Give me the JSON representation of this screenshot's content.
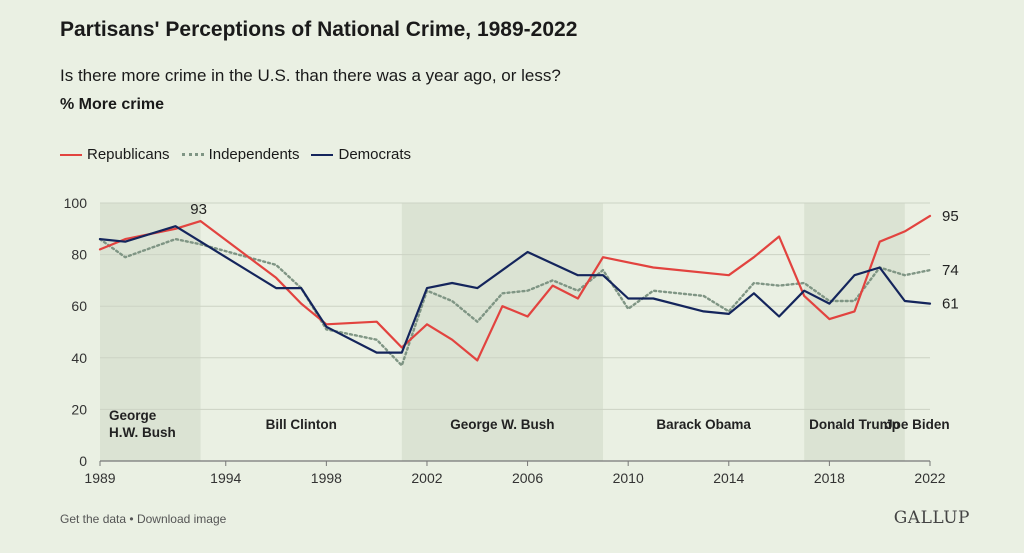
{
  "title": "Partisans' Perceptions of National Crime, 1989-2022",
  "subtitle": "Is there more crime in the U.S. than there was a year ago, or less?",
  "measure_label": "% More crime",
  "footer": {
    "get_data": "Get the data",
    "separator": "•",
    "download": "Download image"
  },
  "brand": "GALLUP",
  "colors": {
    "republicans": "#e2433f",
    "independents": "#7f9584",
    "democrats": "#14255c",
    "shade": "#dbe3d3",
    "grid": "#ccd3c4",
    "axis": "#777777",
    "text": "#1a1a1a"
  },
  "chart_data": {
    "type": "line",
    "title": "Partisans' Perceptions of National Crime, 1989-2022",
    "subtitle": "Is there more crime in the U.S. than there was a year ago, or less?",
    "ylabel": "% More crime",
    "xlabel": "",
    "xlim": [
      1989,
      2022
    ],
    "ylim": [
      0,
      100
    ],
    "x_ticks": [
      1989,
      1994,
      1998,
      2002,
      2006,
      2010,
      2014,
      2018,
      2022
    ],
    "y_ticks": [
      0,
      20,
      40,
      60,
      80,
      100
    ],
    "grid": true,
    "legend_position": "top-left",
    "series": [
      {
        "name": "Republicans",
        "key": "republicans",
        "style": "solid",
        "x": [
          1989,
          1990,
          1992,
          1993,
          1996,
          1997,
          1998,
          2000,
          2001,
          2002,
          2003,
          2004,
          2005,
          2006,
          2007,
          2008,
          2009,
          2011,
          2014,
          2015,
          2016,
          2017,
          2018,
          2019,
          2020,
          2021,
          2022
        ],
        "y": [
          82,
          86,
          90,
          93,
          71,
          61,
          53,
          54,
          44,
          53,
          47,
          39,
          60,
          56,
          68,
          63,
          79,
          75,
          72,
          79,
          87,
          64,
          55,
          58,
          85,
          89,
          95
        ]
      },
      {
        "name": "Independents",
        "key": "independents",
        "style": "dotted",
        "x": [
          1989,
          1990,
          1992,
          1993,
          1996,
          1997,
          1998,
          2000,
          2001,
          2002,
          2003,
          2004,
          2005,
          2006,
          2007,
          2008,
          2009,
          2010,
          2011,
          2013,
          2014,
          2015,
          2016,
          2017,
          2018,
          2019,
          2020,
          2021,
          2022
        ],
        "y": [
          86,
          79,
          86,
          84,
          76,
          67,
          51,
          47,
          37,
          66,
          62,
          54,
          65,
          66,
          70,
          66,
          74,
          59,
          66,
          64,
          58,
          69,
          68,
          69,
          62,
          62,
          75,
          72,
          74
        ]
      },
      {
        "name": "Democrats",
        "key": "democrats",
        "style": "solid",
        "x": [
          1989,
          1990,
          1992,
          1996,
          1997,
          1998,
          2000,
          2001,
          2002,
          2003,
          2004,
          2006,
          2008,
          2009,
          2010,
          2011,
          2013,
          2014,
          2015,
          2016,
          2017,
          2018,
          2019,
          2020,
          2021,
          2022
        ],
        "y": [
          86,
          85,
          91,
          67,
          67,
          52,
          42,
          42,
          67,
          69,
          67,
          81,
          72,
          72,
          63,
          63,
          58,
          57,
          65,
          56,
          66,
          61,
          72,
          75,
          62,
          61
        ]
      }
    ],
    "annotations": [
      {
        "text": "93",
        "x": 1993,
        "y": 93
      },
      {
        "text": "95",
        "x": 2022,
        "y": 95
      },
      {
        "text": "74",
        "x": 2022,
        "y": 74
      },
      {
        "text": "61",
        "x": 2022,
        "y": 61
      }
    ],
    "presidencies": [
      {
        "label": [
          "George",
          "H.W. Bush"
        ],
        "start": 1989,
        "end": 1993,
        "shaded": true,
        "align": "left"
      },
      {
        "label": [
          "Bill Clinton"
        ],
        "start": 1993,
        "end": 2001,
        "shaded": false,
        "align": "center"
      },
      {
        "label": [
          "George W. Bush"
        ],
        "start": 2001,
        "end": 2009,
        "shaded": true,
        "align": "center"
      },
      {
        "label": [
          "Barack Obama"
        ],
        "start": 2009,
        "end": 2017,
        "shaded": false,
        "align": "center"
      },
      {
        "label": [
          "Donald Trump"
        ],
        "start": 2017,
        "end": 2021,
        "shaded": true,
        "align": "center"
      },
      {
        "label": [
          "Joe Biden"
        ],
        "start": 2021,
        "end": 2022,
        "shaded": false,
        "align": "center"
      }
    ]
  }
}
